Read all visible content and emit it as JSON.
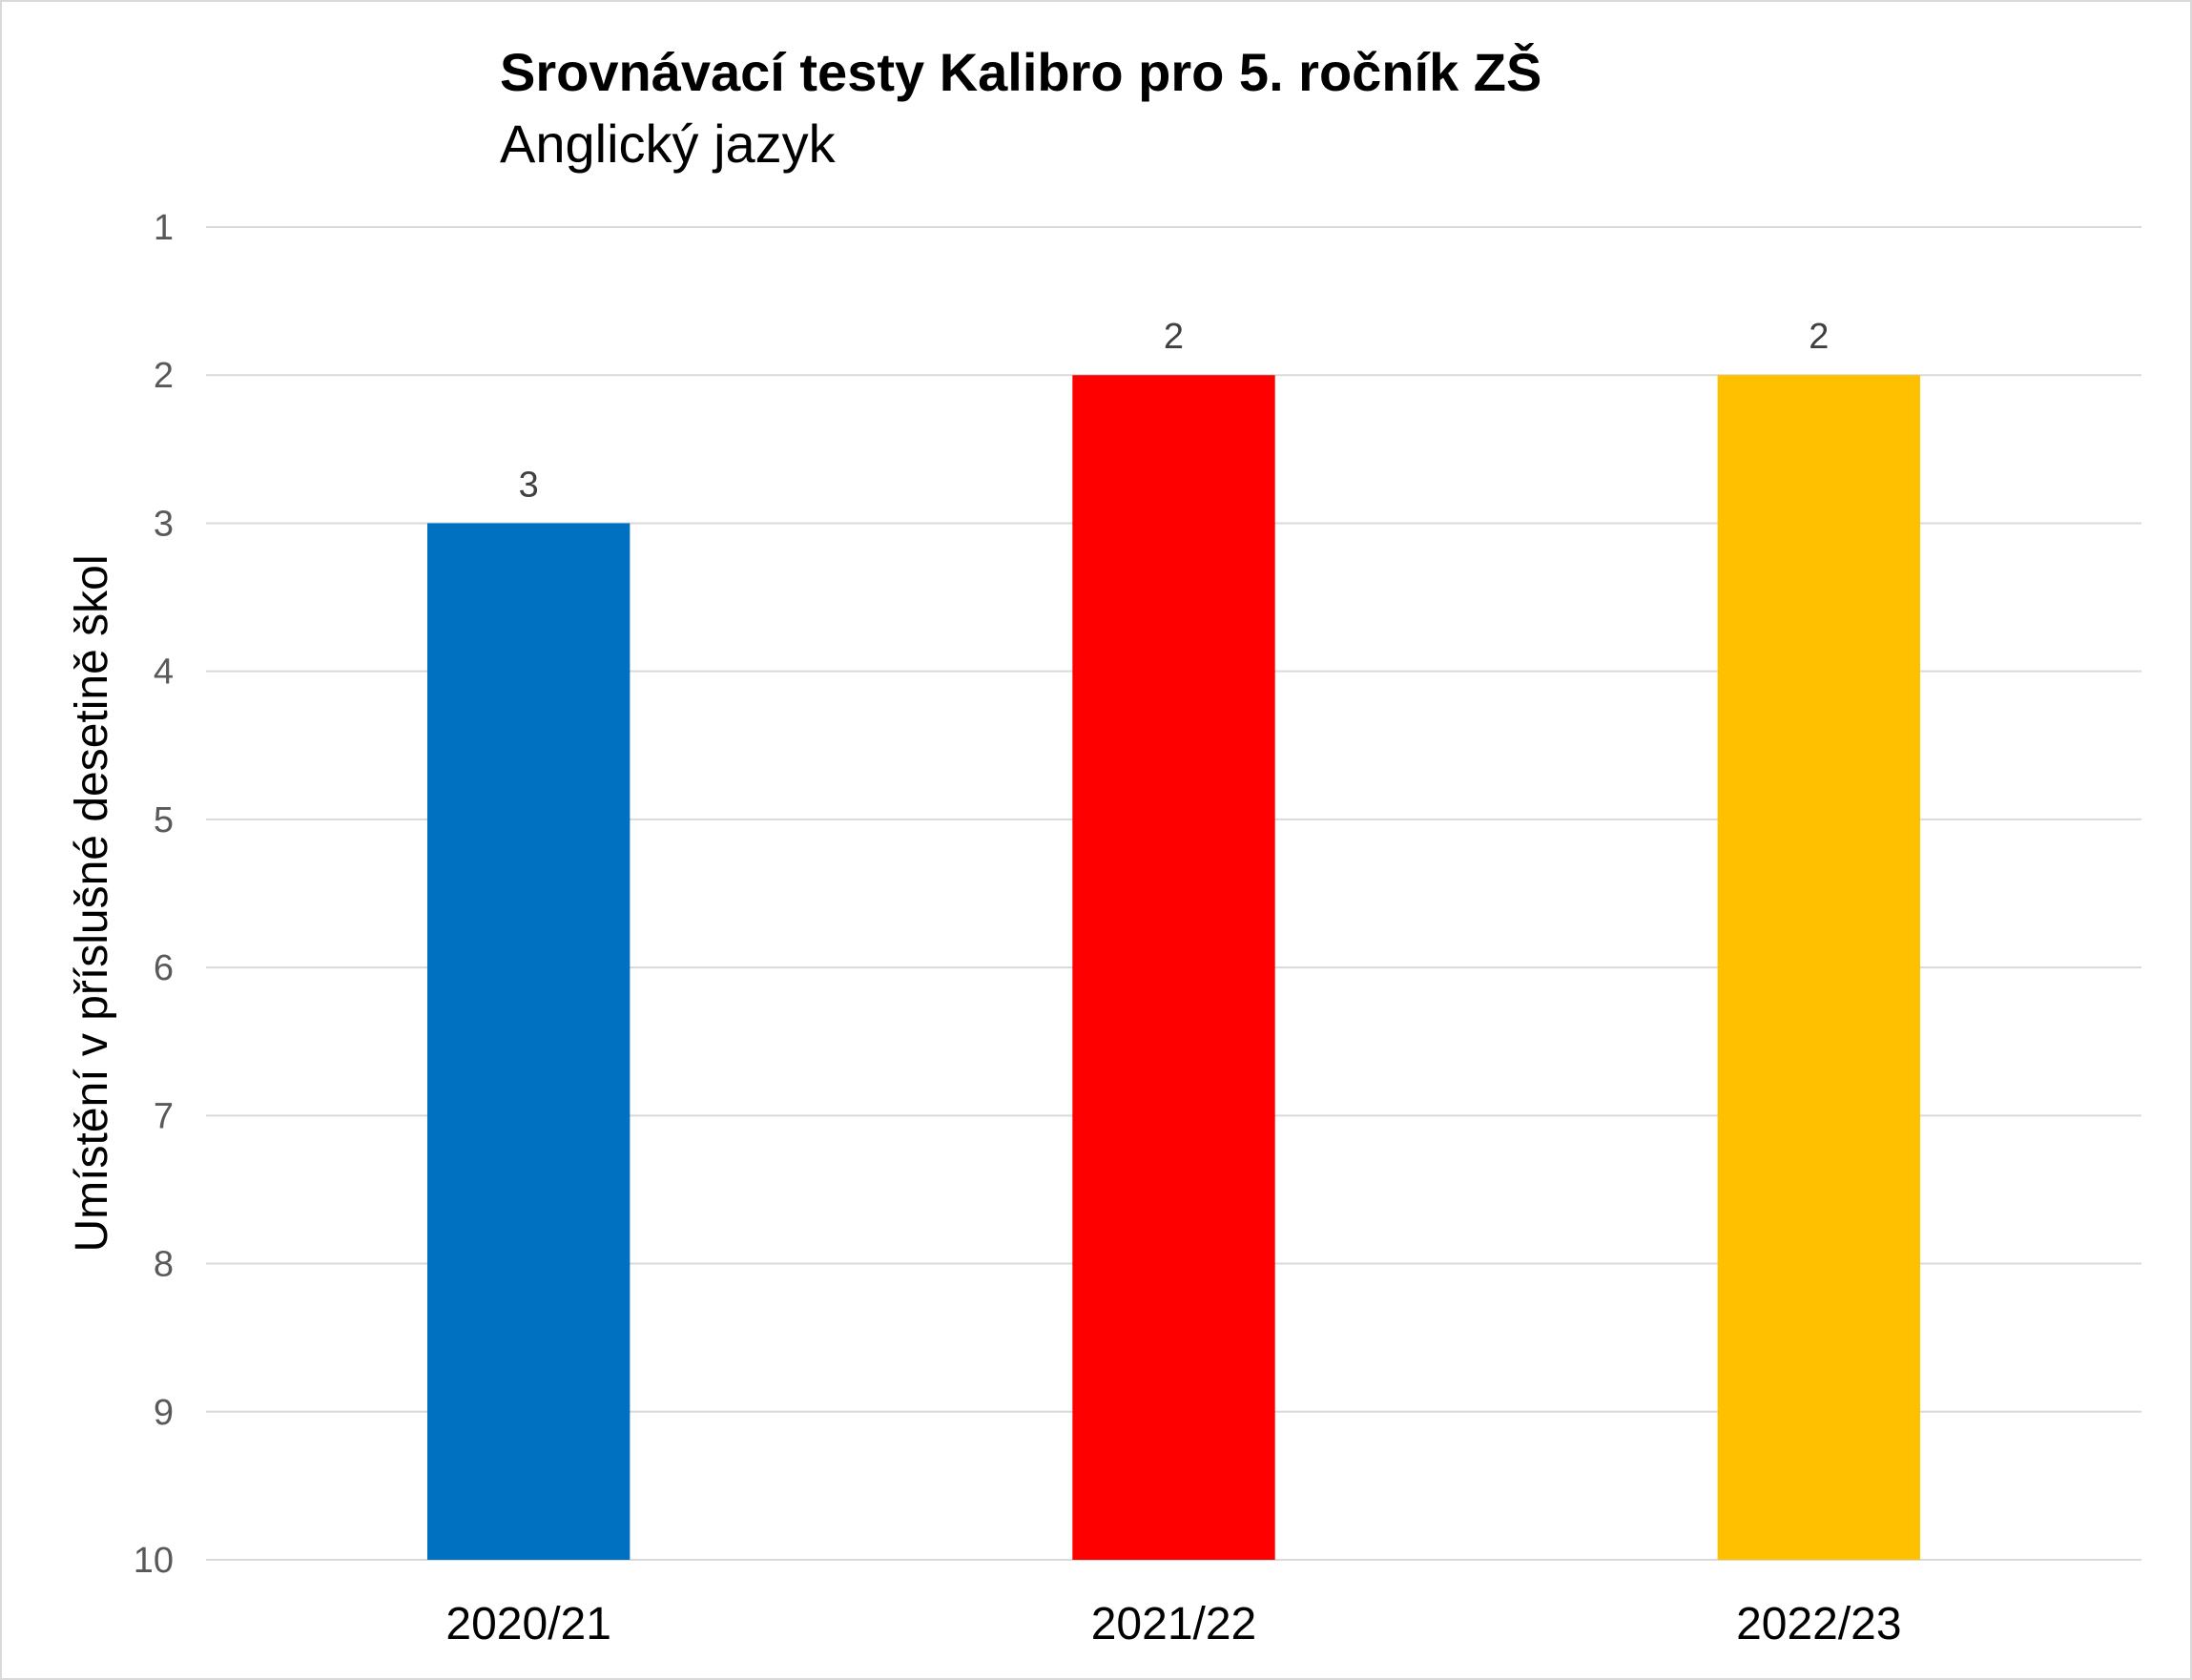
{
  "chart_data": {
    "type": "bar",
    "title": "Srovnávací testy Kalibro pro 5. ročník ZŠ",
    "subtitle": "Anglický jazyk",
    "ylabel": "Umístění v příslušné desetině škol",
    "xlabel": "",
    "categories": [
      "2020/21",
      "2021/22",
      "2022/23"
    ],
    "values": [
      3,
      2,
      2
    ],
    "data_labels": [
      "3",
      "2",
      "2"
    ],
    "colors": [
      "#0070C0",
      "#FF0000",
      "#FFC000"
    ],
    "ylim": [
      1,
      10
    ],
    "y_inverted": true,
    "yticks": [
      "1",
      "2",
      "3",
      "4",
      "5",
      "6",
      "7",
      "8",
      "9",
      "10"
    ],
    "grid": true,
    "legend": "none"
  }
}
